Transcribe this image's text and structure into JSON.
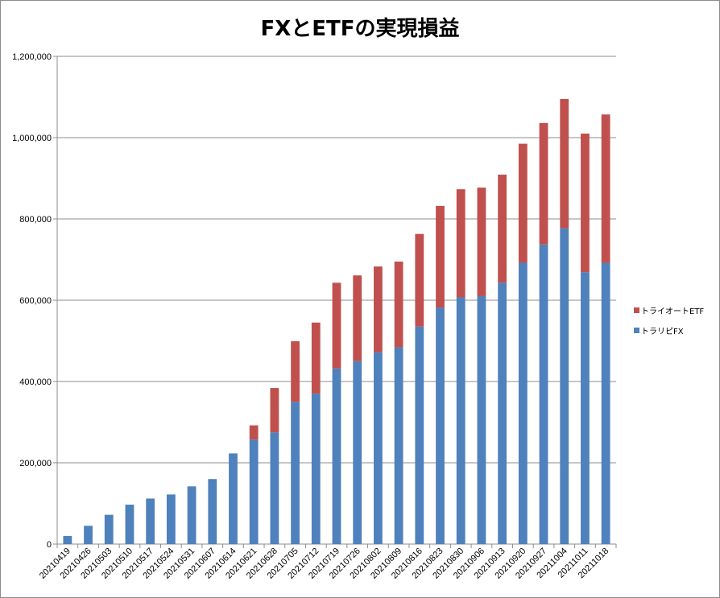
{
  "chart_data": {
    "type": "bar",
    "stacked": true,
    "title": "FXとETFの実現損益",
    "xlabel": "",
    "ylabel": "",
    "ylim": [
      0,
      1200000
    ],
    "yticks": [
      "0",
      "200,000",
      "400,000",
      "600,000",
      "800,000",
      "1,000,000",
      "1,200,000"
    ],
    "grid": true,
    "legend_position": "right",
    "categories": [
      "20210419",
      "20210426",
      "20210503",
      "20210510",
      "20210517",
      "20210524",
      "20210531",
      "20210607",
      "20210614",
      "20210621",
      "20210628",
      "20210705",
      "20210712",
      "20210719",
      "20210726",
      "20210802",
      "20210809",
      "20210816",
      "20210823",
      "20210830",
      "20210906",
      "20210913",
      "20210920",
      "20210927",
      "20211004",
      "20211011",
      "20211018"
    ],
    "series": [
      {
        "name": "トラリピFX",
        "color": "#4f81bd",
        "values": [
          20000,
          45000,
          72000,
          97000,
          112000,
          122000,
          142000,
          160000,
          223000,
          257000,
          275000,
          350000,
          370000,
          432000,
          450000,
          472000,
          484000,
          535000,
          582000,
          607000,
          610000,
          643000,
          692000,
          737000,
          777000,
          669000,
          692000
        ]
      },
      {
        "name": "トライオートETF",
        "color": "#c0504d",
        "values": [
          0,
          0,
          0,
          0,
          0,
          0,
          0,
          0,
          0,
          35000,
          109000,
          149000,
          175000,
          211000,
          211000,
          211000,
          211000,
          228000,
          250000,
          266000,
          267000,
          266000,
          293000,
          299000,
          318000,
          341000,
          365000
        ]
      }
    ]
  }
}
